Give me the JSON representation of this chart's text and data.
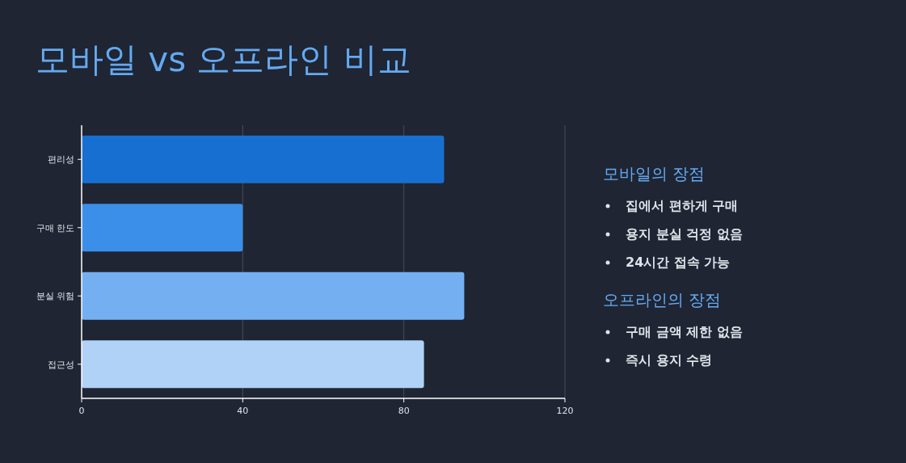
{
  "chart_data": [
    {
      "type": "bar",
      "orientation": "horizontal",
      "title": "모바일 vs 오프라인 비교",
      "categories": [
        "편리성",
        "구매 한도",
        "분실 위험",
        "접근성"
      ],
      "values": [
        90,
        40,
        95,
        85
      ],
      "colors": [
        "#176fd1",
        "#3b8fe9",
        "#74b0f1",
        "#afd2f6"
      ],
      "xlim": [
        0,
        120
      ],
      "xticks": [
        0,
        40,
        80,
        120
      ],
      "grid": "x"
    },
    {
      "type": "other",
      "title": "모바일의 장점",
      "annotations": [
        "집에서 편하게 구매",
        "용지 분실 걱정 없음",
        "24시간 접속 가능"
      ]
    },
    {
      "type": "other",
      "title": "오프라인의 장점",
      "annotations": [
        "구매 금액 제한 없음",
        "즉시 용지 수령"
      ]
    }
  ]
}
